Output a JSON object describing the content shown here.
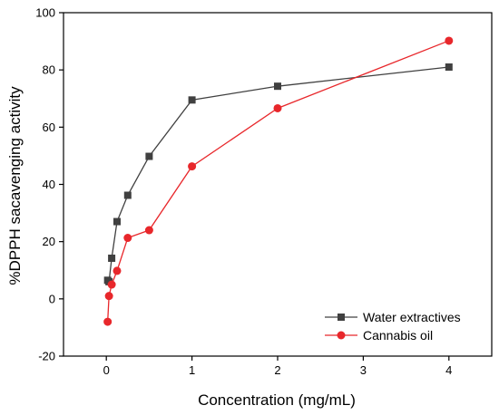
{
  "chart_data": {
    "type": "line",
    "title": "",
    "xlabel": "Concentration (mg/mL)",
    "ylabel": "%DPPH sacavenging activity",
    "xlim": [
      -0.5,
      4.5
    ],
    "ylim": [
      -20,
      100
    ],
    "xticks": [
      0,
      1,
      2,
      3,
      4
    ],
    "yticks": [
      -20,
      0,
      20,
      40,
      60,
      80,
      100
    ],
    "xtick_labels": [
      "0",
      "1",
      "2",
      "3",
      "4"
    ],
    "ytick_labels": [
      "-20",
      "0",
      "20",
      "40",
      "60",
      "80",
      "100"
    ],
    "grid": false,
    "legend_position": "bottom-right",
    "series": [
      {
        "name": "Water extractives",
        "color": "#404040",
        "marker": "square",
        "x": [
          0.015625,
          0.03125,
          0.0625,
          0.125,
          0.25,
          0.5,
          1,
          2,
          4
        ],
        "y": [
          6.5,
          6.0,
          14.2,
          27.0,
          36.2,
          49.8,
          69.5,
          74.3,
          81.0
        ]
      },
      {
        "name": "Cannabis oil",
        "color": "#e8272b",
        "marker": "circle",
        "x": [
          0.015625,
          0.03125,
          0.0625,
          0.125,
          0.25,
          0.5,
          1,
          2,
          4
        ],
        "y": [
          -8.0,
          1.0,
          5.0,
          9.8,
          21.3,
          24.0,
          46.3,
          66.6,
          90.2
        ]
      }
    ]
  }
}
